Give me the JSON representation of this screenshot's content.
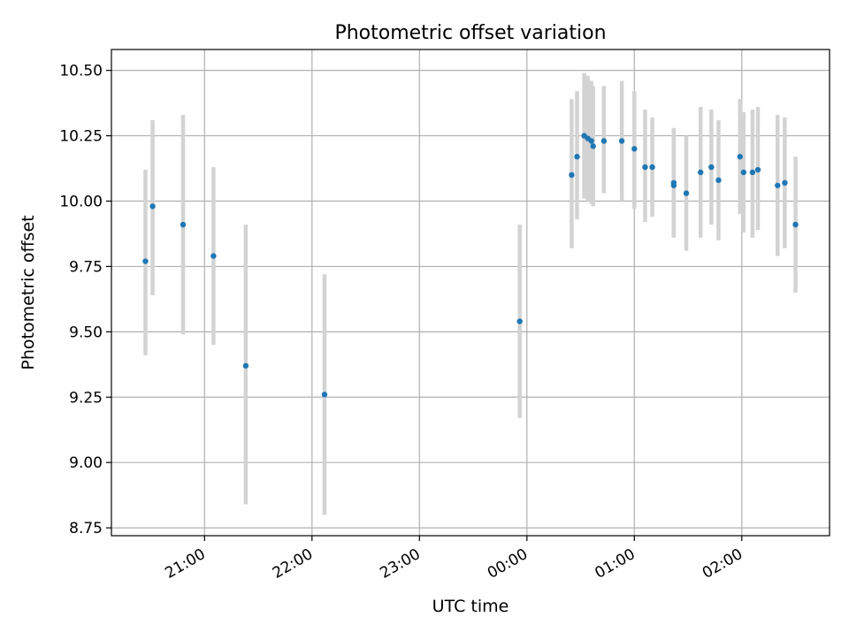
{
  "chart_data": {
    "type": "scatter",
    "title": "Photometric offset variation",
    "xlabel": "UTC time",
    "ylabel": "Photometric offset",
    "grid": true,
    "colors": {
      "point": "#1f77b4",
      "errorbar": "#d3d3d3",
      "grid": "#b0b0b0"
    },
    "xlim": [
      "20:08",
      "02:49"
    ],
    "ylim": [
      8.72,
      10.58
    ],
    "x_ticks": [
      "21:00",
      "22:00",
      "23:00",
      "00:00",
      "01:00",
      "02:00"
    ],
    "y_ticks": [
      "8.75",
      "9.00",
      "9.25",
      "9.50",
      "9.75",
      "10.00",
      "10.25",
      "10.50"
    ],
    "series": [
      {
        "points": [
          {
            "x": "20:27",
            "y": 9.77,
            "ylo": 9.41,
            "yhi": 10.12
          },
          {
            "x": "20:31",
            "y": 9.98,
            "ylo": 9.64,
            "yhi": 10.31
          },
          {
            "x": "20:48",
            "y": 9.91,
            "ylo": 9.49,
            "yhi": 10.33
          },
          {
            "x": "21:05",
            "y": 9.79,
            "ylo": 9.45,
            "yhi": 10.13
          },
          {
            "x": "21:23",
            "y": 9.37,
            "ylo": 8.84,
            "yhi": 9.91
          },
          {
            "x": "22:07",
            "y": 9.26,
            "ylo": 8.8,
            "yhi": 9.72
          },
          {
            "x": "23:56",
            "y": 9.54,
            "ylo": 9.17,
            "yhi": 9.91
          },
          {
            "x": "00:25",
            "y": 10.1,
            "ylo": 9.82,
            "yhi": 10.39
          },
          {
            "x": "00:28",
            "y": 10.17,
            "ylo": 9.93,
            "yhi": 10.42
          },
          {
            "x": "00:32",
            "y": 10.25,
            "ylo": 10.01,
            "yhi": 10.49
          },
          {
            "x": "00:34",
            "y": 10.24,
            "ylo": 10.0,
            "yhi": 10.48
          },
          {
            "x": "00:36",
            "y": 10.23,
            "ylo": 9.99,
            "yhi": 10.46
          },
          {
            "x": "00:37",
            "y": 10.21,
            "ylo": 9.98,
            "yhi": 10.44
          },
          {
            "x": "00:43",
            "y": 10.23,
            "ylo": 10.03,
            "yhi": 10.44
          },
          {
            "x": "00:53",
            "y": 10.23,
            "ylo": 10.0,
            "yhi": 10.46
          },
          {
            "x": "01:00",
            "y": 10.2,
            "ylo": 9.97,
            "yhi": 10.42
          },
          {
            "x": "01:06",
            "y": 10.13,
            "ylo": 9.92,
            "yhi": 10.35
          },
          {
            "x": "01:10",
            "y": 10.13,
            "ylo": 9.94,
            "yhi": 10.32
          },
          {
            "x": "01:22",
            "y": 10.07,
            "ylo": 9.86,
            "yhi": 10.28
          },
          {
            "x": "01:22",
            "y": 10.06,
            "ylo": 9.86,
            "yhi": 10.27
          },
          {
            "x": "01:29",
            "y": 10.03,
            "ylo": 9.81,
            "yhi": 10.25
          },
          {
            "x": "01:37",
            "y": 10.11,
            "ylo": 9.86,
            "yhi": 10.36
          },
          {
            "x": "01:43",
            "y": 10.13,
            "ylo": 9.91,
            "yhi": 10.35
          },
          {
            "x": "01:47",
            "y": 10.08,
            "ylo": 9.85,
            "yhi": 10.31
          },
          {
            "x": "01:59",
            "y": 10.17,
            "ylo": 9.95,
            "yhi": 10.39
          },
          {
            "x": "02:01",
            "y": 10.11,
            "ylo": 9.88,
            "yhi": 10.34
          },
          {
            "x": "02:06",
            "y": 10.11,
            "ylo": 9.86,
            "yhi": 10.35
          },
          {
            "x": "02:09",
            "y": 10.12,
            "ylo": 9.89,
            "yhi": 10.36
          },
          {
            "x": "02:20",
            "y": 10.06,
            "ylo": 9.79,
            "yhi": 10.33
          },
          {
            "x": "02:24",
            "y": 10.07,
            "ylo": 9.82,
            "yhi": 10.32
          },
          {
            "x": "02:30",
            "y": 9.91,
            "ylo": 9.65,
            "yhi": 10.17
          }
        ]
      }
    ]
  }
}
